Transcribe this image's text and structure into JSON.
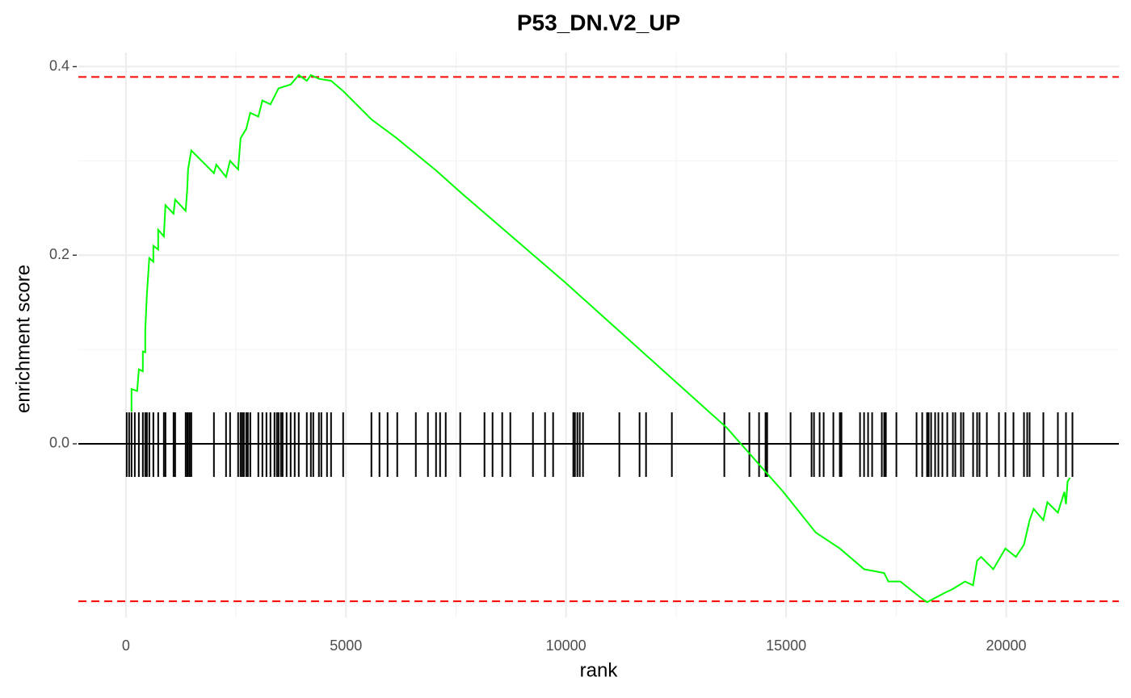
{
  "chart_data": {
    "type": "line",
    "title": "P53_DN.V2_UP",
    "x_label": "rank",
    "y_label": "enrichment score",
    "color": "#00ff00",
    "x": [
      128,
      128,
      257,
      294,
      385,
      385,
      440,
      440,
      477,
      532,
      624,
      624,
      734,
      734,
      862,
      899,
      1083,
      1119,
      1358,
      1394,
      1413,
      1486,
      2000,
      2055,
      2275,
      2367,
      2550,
      2605,
      2734,
      2826,
      3009,
      3101,
      3284,
      3468,
      3743,
      3927,
      4110,
      4202,
      4385,
      4661,
      4936,
      5578,
      6128,
      7046,
      7596,
      9982,
      13651,
      14936,
      15670,
      16220,
      16771,
      17229,
      17321,
      17596,
      18055,
      18200,
      18606,
      18789,
      19064,
      19248,
      19339,
      19431,
      19706,
      19982,
      20220,
      20404,
      20532,
      20624,
      20844,
      20936,
      21174,
      21321,
      21358,
      21395,
      21450
    ],
    "values": [
      0.034,
      0.058,
      0.056,
      0.079,
      0.077,
      0.098,
      0.097,
      0.12,
      0.158,
      0.197,
      0.193,
      0.21,
      0.206,
      0.227,
      0.22,
      0.253,
      0.244,
      0.259,
      0.247,
      0.27,
      0.291,
      0.311,
      0.287,
      0.296,
      0.283,
      0.3,
      0.291,
      0.324,
      0.334,
      0.351,
      0.347,
      0.364,
      0.36,
      0.377,
      0.381,
      0.391,
      0.385,
      0.391,
      0.387,
      0.385,
      0.374,
      0.344,
      0.325,
      0.29,
      0.267,
      0.171,
      0.017,
      -0.051,
      -0.094,
      -0.111,
      -0.133,
      -0.137,
      -0.146,
      -0.146,
      -0.163,
      -0.168,
      -0.158,
      -0.154,
      -0.146,
      -0.15,
      -0.124,
      -0.12,
      -0.133,
      -0.111,
      -0.12,
      -0.107,
      -0.081,
      -0.069,
      -0.081,
      -0.062,
      -0.073,
      -0.051,
      -0.064,
      -0.04,
      -0.036
    ],
    "rug": {
      "color": "#000000",
      "x": [
        18,
        73,
        128,
        202,
        294,
        385,
        440,
        477,
        532,
        624,
        734,
        862,
        899,
        1083,
        1119,
        1358,
        1394,
        1413,
        1450,
        1486,
        2000,
        2275,
        2367,
        2550,
        2605,
        2642,
        2679,
        2734,
        2771,
        2826,
        3009,
        3101,
        3193,
        3284,
        3376,
        3431,
        3468,
        3523,
        3560,
        3651,
        3743,
        3835,
        3927,
        4110,
        4202,
        4257,
        4385,
        4440,
        4569,
        4661,
        4936,
        5578,
        5761,
        5945,
        6165,
        6587,
        6862,
        7046,
        7138,
        7266,
        7596,
        8147,
        8330,
        8550,
        8734,
        9248,
        9523,
        9706,
        10165,
        10202,
        10257,
        10312,
        10385,
        11211,
        11670,
        11817,
        12404,
        13596,
        14165,
        14385,
        14532,
        14569,
        15101,
        15578,
        15633,
        15761,
        15853,
        16073,
        16220,
        16257,
        16679,
        16771,
        16862,
        16954,
        17174,
        17229,
        17266,
        17505,
        17963,
        18092,
        18202,
        18239,
        18294,
        18385,
        18459,
        18550,
        18661,
        18789,
        18844,
        18972,
        19028,
        19248,
        19339,
        19394,
        19560,
        19835,
        19982,
        20165,
        20404,
        20477,
        20532,
        20844,
        21174,
        21358,
        21505
      ]
    },
    "hlines": {
      "values": [
        0.389,
        -0.167
      ],
      "color": "#ff0000",
      "dashed": true
    },
    "zero_line": true,
    "xlim": [
      -1080,
      22560
    ],
    "ylim": [
      -0.184,
      0.415
    ],
    "xticks": [
      0,
      5000,
      10000,
      15000,
      20000
    ],
    "yticks": [
      {
        "value": 0,
        "label": "0.0"
      },
      0.2,
      0.4
    ],
    "grid": true,
    "minor_grid": true
  }
}
